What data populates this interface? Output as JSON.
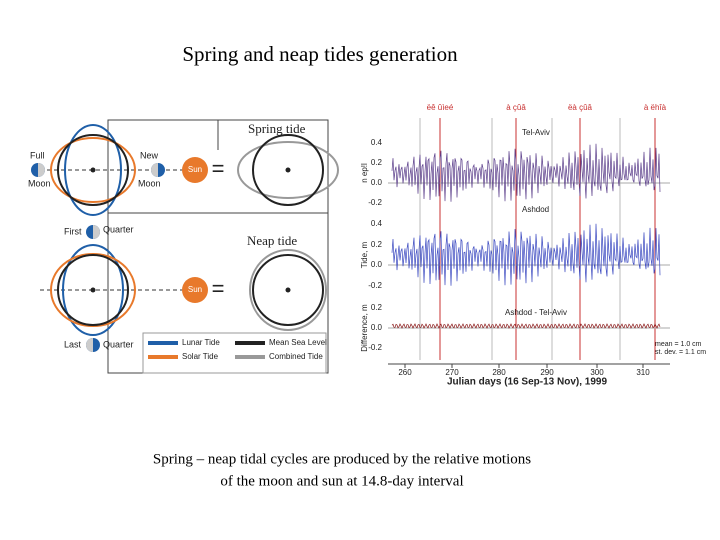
{
  "title": "Spring and neap tides generation",
  "diagram": {
    "spring_label": "Spring tide",
    "neap_label": "Neap tide",
    "full": "Full",
    "new": "New",
    "moon_left": "Moon",
    "moon_right": "Moon",
    "sun_top": "Sun",
    "first": "First",
    "quarter_top": "Quarter",
    "last": "Last",
    "quarter_bottom": "Quarter",
    "sun_bottom": "Sun",
    "legend": [
      "Lunar Tide",
      "Solar Tide",
      "Mean Sea Level",
      "Combined Tide"
    ]
  },
  "chart": {
    "events": [
      "ëê ûìeé",
      "à çûâ",
      "ëà çûâ",
      "à ëhîà"
    ],
    "panels": [
      {
        "name": "Tel-Aviv",
        "ylabel": "n ep!l",
        "ticks": [
          "0.4",
          "0.2",
          "0.0",
          "-0.2"
        ]
      },
      {
        "name": "Ashdod",
        "ylabel": "Tide, m",
        "ticks": [
          "0.4",
          "0.2",
          "0.0",
          "-0.2"
        ]
      },
      {
        "name": "Ashdod - Tel-Aviv",
        "ylabel": "Difference, m",
        "ticks": [
          "0.2",
          "0.0",
          "-0.2"
        ]
      }
    ],
    "xticks": [
      "260",
      "270",
      "280",
      "290",
      "300",
      "310"
    ],
    "xlabel": "Julian days (16 Sep-13 Nov), 1999",
    "stats": [
      "mean = 1.0 cm",
      "st. dev. = 1.1 cm"
    ]
  },
  "caption": [
    "Spring – neap tidal cycles are produced by the relative motions",
    "of the moon and sun at 14.8-day interval"
  ]
}
